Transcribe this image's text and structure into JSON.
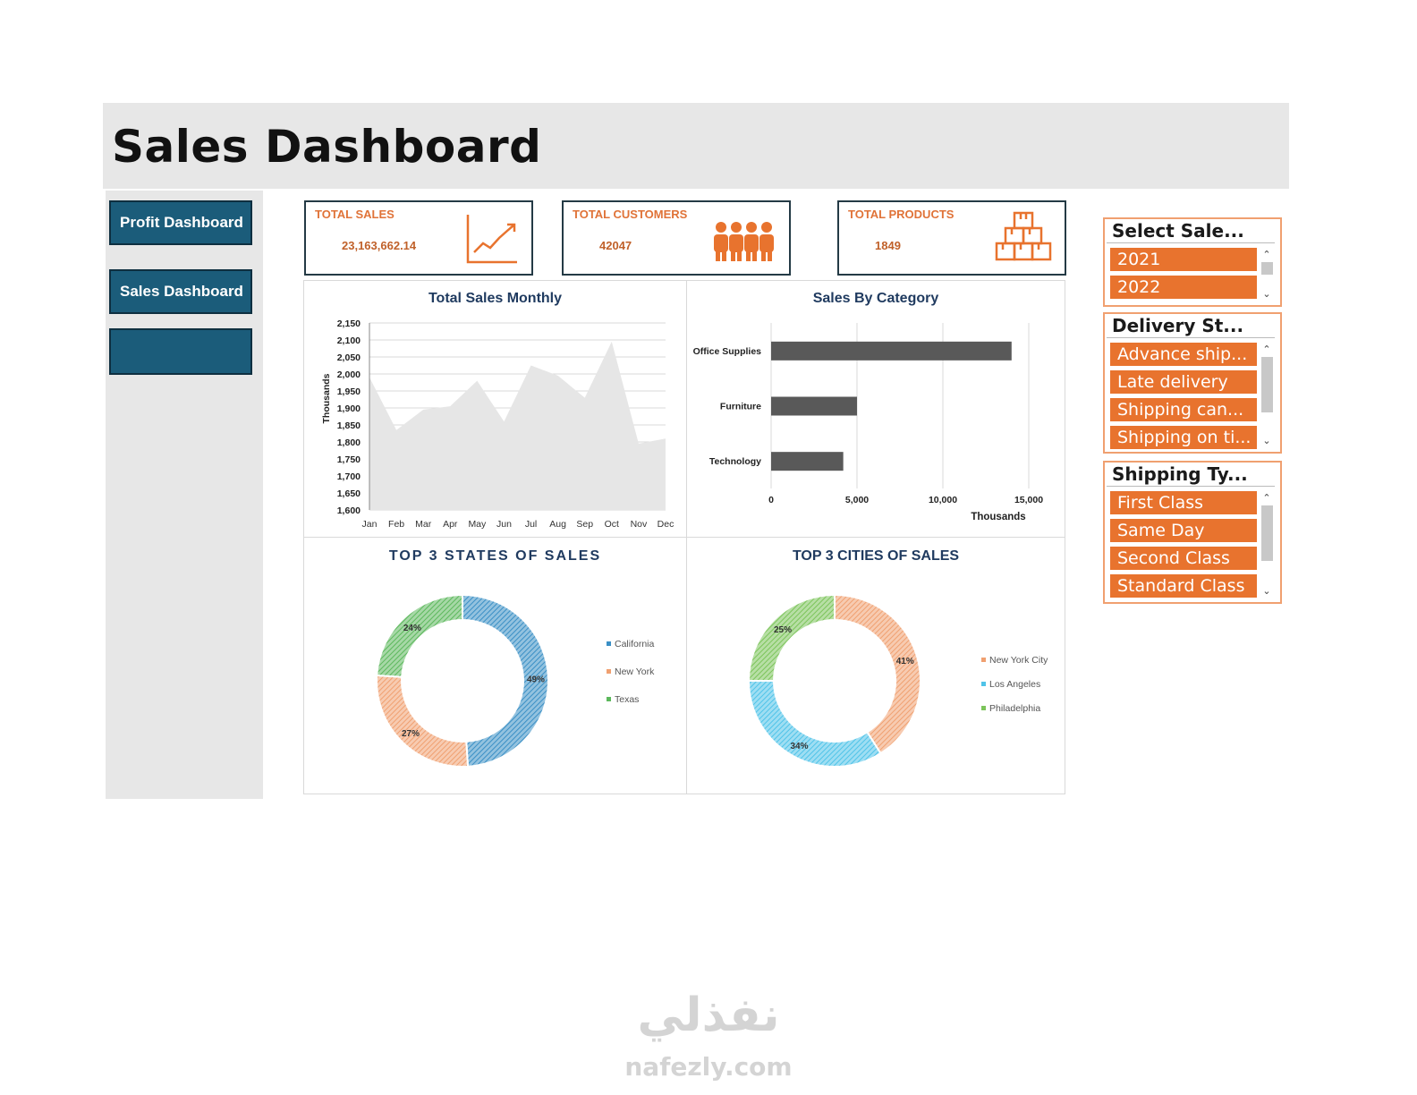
{
  "header": {
    "title": "Sales Dashboard"
  },
  "sidebar": {
    "buttons": [
      "Profit Dashboard",
      "Sales Dashboard",
      ""
    ]
  },
  "kpis": [
    {
      "label": "TOTAL SALES",
      "value": "23,163,662.14",
      "icon": "line-chart-icon"
    },
    {
      "label": "TOTAL CUSTOMERS",
      "value": "42047",
      "icon": "people-icon"
    },
    {
      "label": "TOTAL PRODUCTS",
      "value": "1849",
      "icon": "boxes-icon"
    }
  ],
  "colors": {
    "accent": "#e8732e",
    "nav": "#1b5c7a",
    "title": "#1f3a5f",
    "bar": "#595959",
    "area": "#e6e6e6"
  },
  "chart_data": [
    {
      "type": "area",
      "title": "Total Sales Monthly",
      "ylabel": "Thousands",
      "categories": [
        "Jan",
        "Feb",
        "Mar",
        "Apr",
        "May",
        "Jun",
        "Jul",
        "Aug",
        "Sep",
        "Oct",
        "Nov",
        "Dec"
      ],
      "values": [
        1990,
        1835,
        1895,
        1905,
        1980,
        1860,
        2025,
        1995,
        1930,
        2095,
        1795,
        1810
      ],
      "ylim": [
        1600,
        2150
      ],
      "yticks": [
        "2,150",
        "2,100",
        "2,050",
        "2,000",
        "1,950",
        "1,900",
        "1,850",
        "1,800",
        "1,750",
        "1,700",
        "1,650",
        "1,600"
      ],
      "grid": true
    },
    {
      "type": "bar",
      "orientation": "horizontal",
      "title": "Sales By Category",
      "xlabel": "Thousands",
      "categories": [
        "Office Supplies",
        "Furniture",
        "Technology"
      ],
      "values": [
        14000,
        5000,
        4200
      ],
      "xlim": [
        0,
        15000
      ],
      "xticks": [
        "0",
        "5,000",
        "10,000",
        "15,000"
      ],
      "grid": true
    },
    {
      "type": "pie",
      "subtype": "donut",
      "title": "TOP 3 STATES OF SALES",
      "categories": [
        "California",
        "New York",
        "Texas"
      ],
      "values": [
        49,
        27,
        24
      ],
      "labels": [
        "49%",
        "27%",
        "24%"
      ],
      "colors": [
        "#3a8fc5",
        "#f0a070",
        "#5cb85c"
      ],
      "legend": "right"
    },
    {
      "type": "pie",
      "subtype": "donut",
      "title": "TOP 3 CITIES OF SALES",
      "categories": [
        "New York City",
        "Los Angeles",
        "Philadelphia"
      ],
      "values": [
        41,
        34,
        25
      ],
      "labels": [
        "41%",
        "34%",
        "25%"
      ],
      "colors": [
        "#f0a070",
        "#4fc3e8",
        "#7cc45a"
      ],
      "legend": "right"
    }
  ],
  "slicers": [
    {
      "title": "Select Sale...",
      "items": [
        "2021",
        "2022"
      ]
    },
    {
      "title": "Delivery St...",
      "items": [
        "Advance ship...",
        "Late delivery",
        "Shipping can...",
        "Shipping on ti..."
      ]
    },
    {
      "title": "Shipping Ty...",
      "items": [
        "First Class",
        "Same Day",
        "Second Class",
        "Standard Class"
      ]
    }
  ],
  "watermark": {
    "arabic": "نفذلي",
    "latin": "nafezly.com"
  }
}
